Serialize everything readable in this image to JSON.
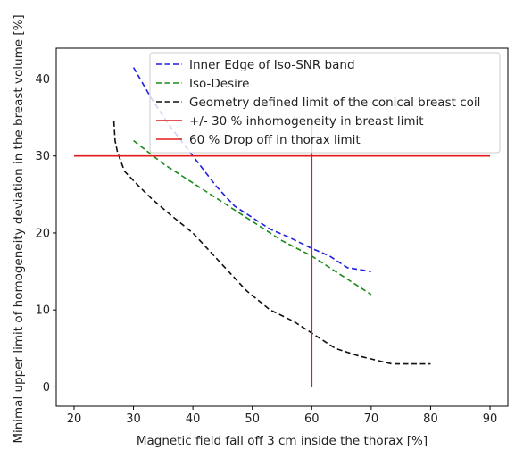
{
  "chart_data": {
    "type": "line",
    "title": "",
    "xlabel": "Magnetic field fall off 3 cm inside the thorax [%]",
    "ylabel": "Minimal upper limit of homogeneity deviation in the breast volume [%]",
    "xlim": [
      17,
      93
    ],
    "ylim": [
      -2.5,
      44
    ],
    "xticks": [
      20,
      30,
      40,
      50,
      60,
      70,
      80,
      90
    ],
    "yticks": [
      0,
      10,
      20,
      30,
      40
    ],
    "grid": false,
    "legend_position": "upper-right",
    "series": [
      {
        "name": "Inner Edge of Iso-SNR band",
        "color": "#1f1fe0",
        "style": "dashed",
        "x": [
          30,
          33,
          36,
          40,
          44,
          47,
          50,
          53,
          56,
          60,
          63,
          66,
          70
        ],
        "y": [
          41.5,
          37.5,
          34,
          30,
          26,
          23.5,
          22,
          20.5,
          19.5,
          18,
          17,
          15.5,
          15
        ]
      },
      {
        "name": "Iso-Desire",
        "color": "#1a8a1a",
        "style": "dashed",
        "x": [
          30,
          35,
          40,
          45,
          50,
          55,
          60,
          65,
          70
        ],
        "y": [
          32,
          29,
          26.5,
          24,
          21.5,
          19,
          17,
          14.5,
          12
        ]
      },
      {
        "name": "Geometry defined limit of the conical breast coil",
        "color": "#111111",
        "style": "dashed",
        "x": [
          26.7,
          26.9,
          27.3,
          28.5,
          31,
          33,
          36,
          40,
          43,
          46,
          49,
          53,
          57,
          60,
          64,
          68,
          73.5,
          80
        ],
        "y": [
          34.5,
          32,
          30.5,
          28,
          26,
          24.5,
          22.5,
          20,
          17.5,
          15,
          12.5,
          10,
          8.5,
          7,
          5,
          4,
          3,
          3
        ]
      },
      {
        "name": "+/- 30 % inhomogeneity in breast limit",
        "color": "#e31a1a",
        "style": "solid",
        "x": [
          20,
          90
        ],
        "y": [
          30,
          30
        ]
      },
      {
        "name": "60 % Drop off in thorax limit",
        "color": "#e31a1a",
        "style": "solid",
        "x": [
          60,
          60
        ],
        "y": [
          0,
          34.5
        ]
      }
    ]
  }
}
